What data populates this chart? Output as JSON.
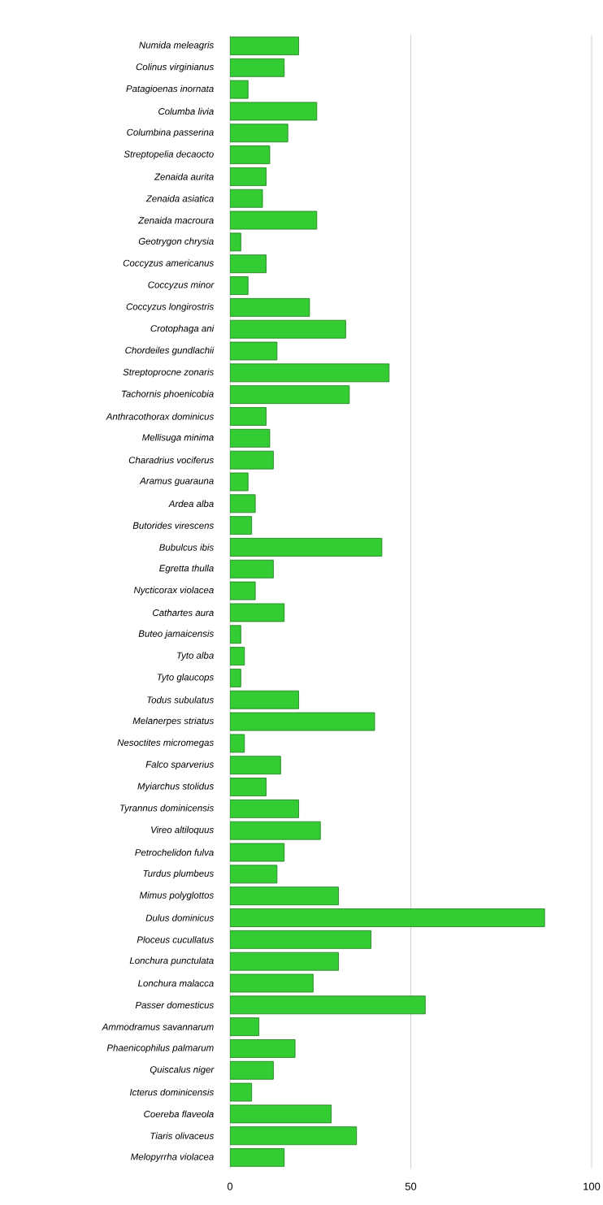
{
  "chart_data": {
    "type": "bar",
    "orientation": "horizontal",
    "categories": [
      "Numida meleagris",
      "Colinus virginianus",
      "Patagioenas inornata",
      "Columba livia",
      "Columbina passerina",
      "Streptopelia decaocto",
      "Zenaida aurita",
      "Zenaida asiatica",
      "Zenaida macroura",
      "Geotrygon chrysia",
      "Coccyzus americanus",
      "Coccyzus minor",
      "Coccyzus longirostris",
      "Crotophaga ani",
      "Chordeiles gundlachii",
      "Streptoprocne zonaris",
      "Tachornis phoenicobia",
      "Anthracothorax dominicus",
      "Mellisuga minima",
      "Charadrius vociferus",
      "Aramus guarauna",
      "Ardea alba",
      "Butorides virescens",
      "Bubulcus ibis",
      "Egretta thulla",
      "Nycticorax violacea",
      "Cathartes aura",
      "Buteo jamaicensis",
      "Tyto alba",
      "Tyto glaucops",
      "Todus subulatus",
      "Melanerpes striatus",
      "Nesoctites micromegas",
      "Falco sparverius",
      "Myiarchus stolidus",
      "Tyrannus dominicensis",
      "Vireo altiloquus",
      "Petrochelidon fulva",
      "Turdus plumbeus",
      "Mimus polyglottos",
      "Dulus dominicus",
      "Ploceus cucullatus",
      "Lonchura punctulata",
      "Lonchura malacca",
      "Passer domesticus",
      "Ammodramus savannarum",
      "Phaenicophilus palmarum",
      "Quiscalus niger",
      "Icterus dominicensis",
      "Coereba flaveola",
      "Tiaris olivaceus",
      "Melopyrrha violacea"
    ],
    "values": [
      19,
      15,
      5,
      24,
      16,
      11,
      10,
      9,
      24,
      3,
      10,
      5,
      22,
      32,
      13,
      44,
      33,
      10,
      11,
      12,
      5,
      7,
      6,
      42,
      12,
      7,
      15,
      3,
      4,
      3,
      19,
      40,
      4,
      14,
      10,
      19,
      25,
      15,
      13,
      30,
      87,
      39,
      30,
      23,
      54,
      8,
      18,
      12,
      6,
      28,
      35,
      15
    ],
    "color": "#33cc33",
    "xlim": [
      0,
      100
    ],
    "xticks": [
      0,
      50,
      100
    ],
    "grid": "x"
  }
}
